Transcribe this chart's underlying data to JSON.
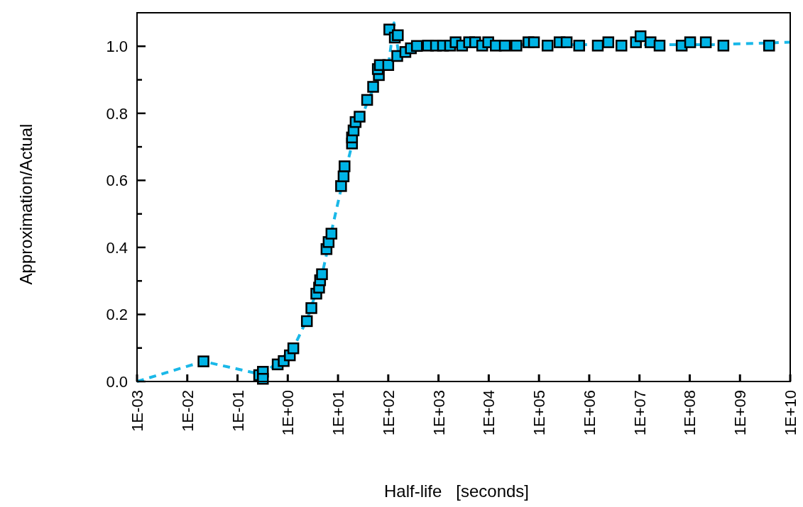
{
  "chart_data": {
    "type": "scatter",
    "xlabel": "Half-life   [seconds]",
    "ylabel": "Approximation/Actual",
    "log": "x",
    "grid": false,
    "xlim": [
      0.001,
      10000000000.0
    ],
    "ylim": [
      0,
      1.1
    ],
    "xticks": [
      {
        "value": 0.001,
        "label": "1E-03"
      },
      {
        "value": 0.01,
        "label": "1E-02"
      },
      {
        "value": 0.1,
        "label": "1E-01"
      },
      {
        "value": 1,
        "label": "1E+00"
      },
      {
        "value": 10.0,
        "label": "1E+01"
      },
      {
        "value": 100.0,
        "label": "1E+02"
      },
      {
        "value": 1000.0,
        "label": "1E+03"
      },
      {
        "value": 10000.0,
        "label": "1E+04"
      },
      {
        "value": 100000.0,
        "label": "1E+05"
      },
      {
        "value": 1000000.0,
        "label": "1E+06"
      },
      {
        "value": 10000000.0,
        "label": "1E+07"
      },
      {
        "value": 100000000.0,
        "label": "1E+08"
      },
      {
        "value": 1000000000.0,
        "label": "1E+09"
      },
      {
        "value": 10000000000.0,
        "label": "1E+10"
      }
    ],
    "yticks": [
      {
        "value": 0,
        "label": "0.0"
      },
      {
        "value": 0.1,
        "label": null
      },
      {
        "value": 0.2,
        "label": "0.2"
      },
      {
        "value": 0.3,
        "label": null
      },
      {
        "value": 0.4,
        "label": "0.4"
      },
      {
        "value": 0.5,
        "label": null
      },
      {
        "value": 0.6,
        "label": "0.6"
      },
      {
        "value": 0.7,
        "label": null
      },
      {
        "value": 0.8,
        "label": "0.8"
      },
      {
        "value": 0.9,
        "label": null
      },
      {
        "value": 1,
        "label": "1.0"
      }
    ],
    "series": [
      {
        "type": "line",
        "color": "#1ab8e8",
        "line_style": "dashed",
        "x": [
          0.001,
          0.021,
          0.32,
          1.3,
          2.5,
          5,
          8,
          12.6,
          20,
          40,
          70,
          100,
          130,
          160,
          320,
          1000.0,
          100000.0,
          10000000.0,
          300000000.0,
          10000000000.0
        ],
        "values": [
          0,
          0.06,
          0.02,
          0.1,
          0.19,
          0.33,
          0.47,
          0.6,
          0.72,
          0.84,
          0.92,
          0.94,
          1.07,
          0.98,
          1,
          1.005,
          1.005,
          1.005,
          1.005,
          1.012
        ]
      },
      {
        "color": "#00b4e6",
        "marker": "square",
        "x": [
          0.021,
          0.27,
          0.32,
          0.32,
          0.63,
          0.83,
          1.1,
          1.29,
          2.4,
          2.95,
          3.7,
          4.2,
          4.4,
          4.8,
          5.9,
          6.5,
          7.4,
          11.5,
          12.9,
          13.5,
          19,
          19,
          20.4,
          22.4,
          26.9,
          38,
          50,
          65,
          62,
          68,
          100,
          105,
          135,
          155,
          151,
          219,
          282,
          372,
          617,
          891,
          1230,
          1700,
          2190,
          2950,
          4070,
          5370,
          7410,
          9770,
          13800.0,
          20900.0,
          35500.0,
          61700.0,
          79400.0,
          148000.0,
          257000.0,
          355000.0,
          631000.0,
          1480000.0,
          2400000.0,
          4370000.0,
          8510000.0,
          10500000.0,
          16600000.0,
          25100000.0,
          69200000.0,
          102000000.0,
          209000000.0,
          468000000.0,
          3800000000.0
        ],
        "values": [
          0.06,
          0.019,
          0.029,
          0.008,
          0.051,
          0.061,
          0.078,
          0.099,
          0.18,
          0.219,
          0.262,
          0.28,
          0.302,
          0.32,
          0.395,
          0.416,
          0.441,
          0.583,
          0.612,
          0.642,
          0.71,
          0.728,
          0.749,
          0.774,
          0.79,
          0.84,
          0.879,
          0.914,
          0.932,
          0.944,
          0.944,
          1.05,
          1.026,
          1.033,
          0.971,
          0.983,
          0.994,
          1.001,
          1.002,
          1.002,
          1.002,
          1.002,
          1.012,
          1.002,
          1.012,
          1.012,
          1.002,
          1.012,
          1.002,
          1.002,
          1.002,
          1.012,
          1.012,
          1.002,
          1.012,
          1.012,
          1.002,
          1.002,
          1.012,
          1.002,
          1.012,
          1.03,
          1.012,
          1.002,
          1.002,
          1.012,
          1.012,
          1.002,
          1.002
        ]
      }
    ]
  }
}
